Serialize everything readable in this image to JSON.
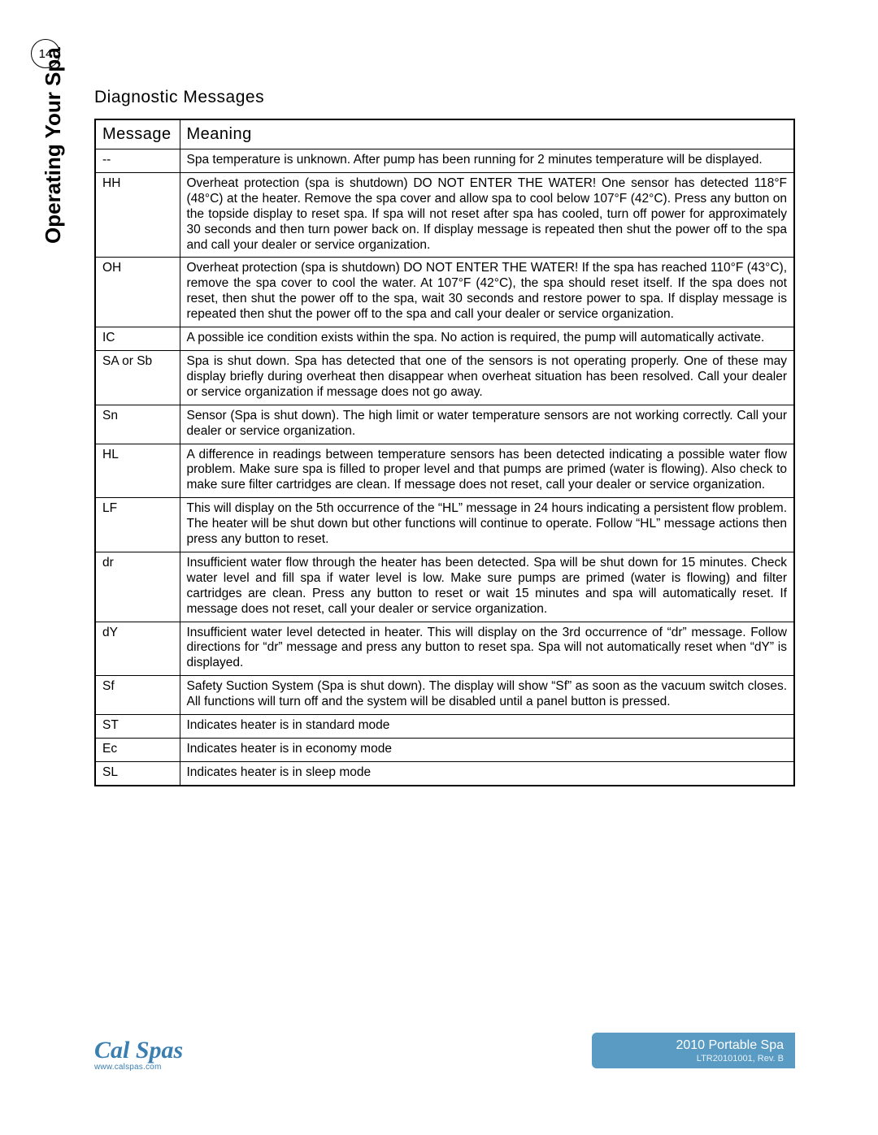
{
  "page_number": "14",
  "side_label": "Operating Your Spa",
  "section_title": "Diagnostic Messages",
  "table": {
    "header_left": "Message",
    "header_right": "Meaning",
    "rows": [
      {
        "msg": "--",
        "meaning": "Spa temperature is unknown.  After pump has been running for 2 minutes temperature will be displayed."
      },
      {
        "msg": "HH",
        "meaning": "Overheat protection (spa is shutdown) DO NOT ENTER THE WATER!  One sensor has detected 118°F (48°C) at the heater.  Remove the spa cover and allow spa to cool below 107°F (42°C). Press any button on the topside display to reset spa.  If spa will not reset after spa has cooled, turn off power for approximately 30 seconds and then turn power back on.  If display message is repeated then shut the power off to the spa and call your dealer or service organization."
      },
      {
        "msg": "OH",
        "meaning": "Overheat protection (spa is shutdown) DO NOT ENTER THE WATER! If the spa has reached 110°F (43°C), remove the spa cover to cool the water. At 107°F (42°C), the spa should reset itself.  If the spa does not reset, then shut the power off to the spa, wait 30 seconds and restore power to spa.  If display message is repeated then shut the power off to the spa and call your dealer or service organization."
      },
      {
        "msg": "IC",
        "meaning": "A possible ice condition exists within the spa.  No action is required, the pump will automatically activate."
      },
      {
        "msg": "SA or Sb",
        "meaning": "Spa is shut down.  Spa has detected that one of the sensors is not operating properly.  One of these may display briefly during overheat then disappear when overheat situation has been resolved.  Call your dealer or service organization if message does not go away."
      },
      {
        "msg": "Sn",
        "meaning": "Sensor (Spa is shut down). The high limit or water temperature sensors are not working correctly. Call your dealer or service organization."
      },
      {
        "msg": "HL",
        "meaning": "A difference in readings between temperature sensors has been detected indicating a possible water flow problem.  Make sure spa is filled to proper level and that pumps are primed (water is flowing).  Also check to make sure filter cartridges are clean.  If message does not reset, call your dealer or service organization."
      },
      {
        "msg": "LF",
        "meaning": "This will display on the 5th occurrence of the “HL” message in 24 hours indicating a persistent flow problem.  The heater will be shut down but other functions will continue to operate. Follow “HL” message actions then press any button to reset."
      },
      {
        "msg": "dr",
        "meaning": "Insufficient water flow through the heater has been detected.  Spa will be shut down for 15 minutes.  Check water level and fill spa if water level is low.  Make sure pumps are primed (water is flowing) and filter cartridges are clean.  Press any button to reset or wait 15 minutes and spa will automatically reset.  If message does not reset, call your dealer or service organization."
      },
      {
        "msg": "dY",
        "meaning": "Insufficient water level detected in heater.  This will display on the 3rd occurrence of “dr” message.  Follow directions for “dr” message and press any button to reset spa.  Spa will not automatically reset when “dY” is displayed."
      },
      {
        "msg": "Sf",
        "meaning": "Safety Suction System (Spa is shut down). The display will show “Sf” as soon as the vacuum switch closes. All functions will turn off and the system will be disabled until a panel button is pressed."
      },
      {
        "msg": "ST",
        "meaning": "Indicates heater is in standard mode"
      },
      {
        "msg": "Ec",
        "meaning": "Indicates heater is in economy mode"
      },
      {
        "msg": "SL",
        "meaning": "Indicates heater is in sleep mode"
      }
    ]
  },
  "footer": {
    "title": "2010 Portable Spa",
    "rev": "LTR20101001, Rev. B",
    "logo_text": "Cal Spas",
    "url": "www.calspas.com",
    "bar_color": "#5a9bc4",
    "logo_color": "#3a7fb0"
  }
}
